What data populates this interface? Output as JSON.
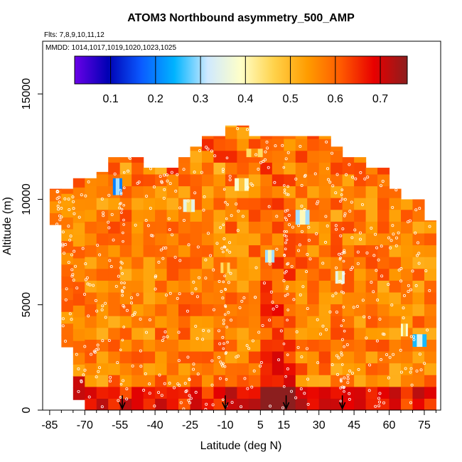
{
  "chart_data": {
    "type": "heatmap",
    "title": "ATOM3 Northbound asymmetry_500_AMP",
    "flights_line": "Flts: 7,8,9,10,11,12",
    "dates_line": "MMDD: 1014,1017,1019,1020,1023,1025",
    "xlabel": "Latitude (deg N)",
    "ylabel": "Altitude (m)",
    "xlim": [
      -88,
      82
    ],
    "ylim": [
      0,
      17500
    ],
    "x_ticks": [
      "-85",
      "-70",
      "-55",
      "-40",
      "-25",
      "-10",
      "5",
      "15",
      "30",
      "45",
      "60",
      "75"
    ],
    "x_tick_values": [
      -85,
      -70,
      -55,
      -40,
      -25,
      -10,
      5,
      15,
      30,
      45,
      60,
      75
    ],
    "y_ticks": [
      "0",
      "5000",
      "10000",
      "15000"
    ],
    "y_tick_values": [
      0,
      5000,
      10000,
      15000
    ],
    "colorbar": {
      "range": [
        0.02,
        0.76
      ],
      "tick_labels": [
        "0.1",
        "0.2",
        "0.3",
        "0.4",
        "0.5",
        "0.6",
        "0.7"
      ],
      "tick_values": [
        0.1,
        0.2,
        0.3,
        0.4,
        0.5,
        0.6,
        0.7
      ],
      "colors": [
        "#6a00e8",
        "#0000b4",
        "#0a5aff",
        "#00b4ff",
        "#cfe9ff",
        "#ffffc8",
        "#ffd24a",
        "#ff9c00",
        "#ff5a00",
        "#e80000",
        "#8c1e1e"
      ]
    },
    "profile_latitudes": [
      -54,
      -10,
      16,
      40
    ],
    "envelope": {
      "lat_edges": [
        -85,
        -80,
        -75,
        -70,
        -65,
        -60,
        -55,
        -50,
        -45,
        -40,
        -35,
        -30,
        -25,
        -20,
        -15,
        -10,
        -5,
        0,
        5,
        10,
        15,
        20,
        25,
        30,
        35,
        40,
        45,
        50,
        55,
        60,
        65,
        70,
        75,
        80
      ],
      "top_altitude": [
        10500,
        10500,
        11000,
        11000,
        11300,
        12000,
        12000,
        12000,
        11500,
        11500,
        11500,
        12000,
        12500,
        13000,
        13000,
        13500,
        13500,
        13000,
        13000,
        13000,
        13000,
        13000,
        13000,
        13000,
        12500,
        12000,
        12000,
        11500,
        11500,
        10500,
        10000,
        10000,
        9000
      ],
      "bottom_altitude": [
        8800,
        3000,
        500,
        0,
        0,
        0,
        0,
        0,
        0,
        0,
        0,
        0,
        0,
        0,
        0,
        0,
        0,
        0,
        0,
        0,
        0,
        0,
        0,
        0,
        0,
        0,
        0,
        0,
        0,
        0,
        0,
        0,
        0
      ]
    },
    "anomalies": [
      {
        "lat": [
          -58,
          -54
        ],
        "alt": [
          10200,
          11000
        ],
        "value": 0.2
      },
      {
        "lat": [
          -28,
          -23
        ],
        "alt": [
          9400,
          10000
        ],
        "value": 0.35
      },
      {
        "lat": [
          -6,
          0
        ],
        "alt": [
          10400,
          11000
        ],
        "value": 0.38
      },
      {
        "lat": [
          7,
          11
        ],
        "alt": [
          7000,
          7600
        ],
        "value": 0.3
      },
      {
        "lat": [
          20,
          26
        ],
        "alt": [
          8800,
          9500
        ],
        "value": 0.3
      },
      {
        "lat": [
          37,
          41
        ],
        "alt": [
          6000,
          6600
        ],
        "value": 0.35
      },
      {
        "lat": [
          70,
          76
        ],
        "alt": [
          3000,
          3600
        ],
        "value": 0.25
      },
      {
        "lat": [
          65,
          68
        ],
        "alt": [
          3500,
          4100
        ],
        "value": 0.38
      },
      {
        "lat": [
          -1,
          6
        ],
        "alt": [
          12000,
          12400
        ],
        "value": 0.45
      },
      {
        "lat": [
          -12,
          -8
        ],
        "alt": [
          6500,
          7000
        ],
        "value": 0.45
      }
    ]
  }
}
